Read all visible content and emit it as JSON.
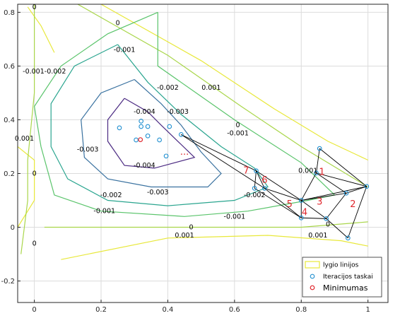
{
  "chart_data": {
    "type": "contour",
    "title": "",
    "xlabel": "",
    "ylabel": "",
    "xlim": [
      -0.05,
      1.06
    ],
    "ylim": [
      -0.28,
      0.83
    ],
    "xticks": [
      "0",
      "0.2",
      "0.4",
      "0.6",
      "0.8",
      "1"
    ],
    "yticks": [
      "-0.2",
      "0",
      "0.2",
      "0.4",
      "0.6",
      "0.8"
    ],
    "grid": true,
    "legend_position": "bottom-right",
    "legend": [
      "lygio linijos",
      "Iteracijos taskai",
      "Minimumas"
    ],
    "colors": {
      "level_yellow": "#e8e83a",
      "level_ylgreen": "#a9d64a",
      "level_green": "#5ac46b",
      "level_teal": "#2aa58f",
      "level_blue": "#3a72a0",
      "level_purple": "#4b2a82",
      "iteration_marker": "#1f8fd0",
      "minimum_marker": "#e0282e",
      "simplex_line": "#000000",
      "sequence_label": "#e0282e"
    },
    "contour_levels": [
      {
        "value": "0.001",
        "color": "level_yellow",
        "points": [
          [
            -0.02,
            0.82
          ],
          [
            0.02,
            0.75
          ],
          [
            0.06,
            0.65
          ]
        ]
      },
      {
        "value": "0.001",
        "color": "level_yellow",
        "points": [
          [
            0.2,
            0.83
          ],
          [
            0.5,
            0.62
          ],
          [
            0.72,
            0.44
          ],
          [
            0.88,
            0.32
          ],
          [
            1.0,
            0.25
          ]
        ]
      },
      {
        "value": "0.001",
        "color": "level_yellow",
        "points": [
          [
            0.08,
            -0.12
          ],
          [
            0.4,
            -0.04
          ],
          [
            0.7,
            -0.03
          ],
          [
            0.92,
            -0.05
          ],
          [
            1.0,
            -0.07
          ]
        ]
      },
      {
        "value": "0.001",
        "color": "level_yellow",
        "points": [
          [
            -0.05,
            0.3
          ],
          [
            0.0,
            0.25
          ],
          [
            0.0,
            0.1
          ],
          [
            -0.05,
            0.0
          ]
        ]
      },
      {
        "value": "0",
        "color": "level_ylgreen",
        "points": [
          [
            0.0,
            0.83
          ],
          [
            0.0,
            0.5
          ],
          [
            -0.02,
            0.25
          ],
          [
            -0.02,
            0.1
          ],
          [
            -0.04,
            -0.1
          ]
        ]
      },
      {
        "value": "0",
        "color": "level_ylgreen",
        "points": [
          [
            0.13,
            0.83
          ],
          [
            0.4,
            0.64
          ],
          [
            0.62,
            0.45
          ],
          [
            0.8,
            0.3
          ],
          [
            1.0,
            0.15
          ]
        ]
      },
      {
        "value": "0",
        "color": "level_ylgreen",
        "points": [
          [
            0.03,
            0.0
          ],
          [
            0.1,
            0.0
          ],
          [
            0.5,
            0.0
          ],
          [
            0.8,
            0.0
          ],
          [
            1.0,
            0.02
          ]
        ]
      },
      {
        "value": "-0.001",
        "color": "level_green",
        "points": [
          [
            0.37,
            0.8
          ],
          [
            0.22,
            0.72
          ],
          [
            0.08,
            0.6
          ],
          [
            0.0,
            0.45
          ],
          [
            0.02,
            0.3
          ],
          [
            0.06,
            0.12
          ],
          [
            0.2,
            0.06
          ],
          [
            0.45,
            0.04
          ],
          [
            0.64,
            0.06
          ],
          [
            0.82,
            0.1
          ],
          [
            0.9,
            0.12
          ],
          [
            0.8,
            0.24
          ],
          [
            0.6,
            0.4
          ],
          [
            0.37,
            0.6
          ],
          [
            0.37,
            0.8
          ]
        ]
      },
      {
        "value": "-0.002",
        "color": "level_teal",
        "points": [
          [
            0.25,
            0.68
          ],
          [
            0.12,
            0.6
          ],
          [
            0.05,
            0.46
          ],
          [
            0.05,
            0.3
          ],
          [
            0.1,
            0.18
          ],
          [
            0.22,
            0.1
          ],
          [
            0.4,
            0.08
          ],
          [
            0.6,
            0.1
          ],
          [
            0.7,
            0.15
          ],
          [
            0.66,
            0.22
          ],
          [
            0.56,
            0.3
          ],
          [
            0.44,
            0.42
          ],
          [
            0.34,
            0.54
          ],
          [
            0.25,
            0.68
          ]
        ]
      },
      {
        "value": "-0.003",
        "color": "level_blue",
        "points": [
          [
            0.3,
            0.55
          ],
          [
            0.2,
            0.5
          ],
          [
            0.14,
            0.4
          ],
          [
            0.15,
            0.26
          ],
          [
            0.22,
            0.18
          ],
          [
            0.35,
            0.15
          ],
          [
            0.52,
            0.15
          ],
          [
            0.56,
            0.2
          ],
          [
            0.5,
            0.28
          ],
          [
            0.44,
            0.38
          ],
          [
            0.38,
            0.46
          ],
          [
            0.3,
            0.55
          ]
        ]
      },
      {
        "value": "-0.004",
        "color": "level_purple",
        "points": [
          [
            0.27,
            0.48
          ],
          [
            0.22,
            0.4
          ],
          [
            0.22,
            0.32
          ],
          [
            0.27,
            0.23
          ],
          [
            0.36,
            0.22
          ],
          [
            0.48,
            0.26
          ],
          [
            0.43,
            0.32
          ],
          [
            0.38,
            0.38
          ],
          [
            0.34,
            0.43
          ],
          [
            0.27,
            0.48
          ]
        ]
      }
    ],
    "contour_labels": [
      {
        "text": "0",
        "x": 0.0,
        "y": 0.82
      },
      {
        "text": "0",
        "x": 0.25,
        "y": 0.76
      },
      {
        "text": "-0.001",
        "x": 0.27,
        "y": 0.66
      },
      {
        "text": "-0.001-0.002",
        "x": 0.03,
        "y": 0.58
      },
      {
        "text": "-0.002",
        "x": 0.4,
        "y": 0.52
      },
      {
        "text": "0.001",
        "x": 0.53,
        "y": 0.52
      },
      {
        "text": "-0.004",
        "x": 0.33,
        "y": 0.43
      },
      {
        "text": "-0.003",
        "x": 0.43,
        "y": 0.43
      },
      {
        "text": "0",
        "x": 0.61,
        "y": 0.38
      },
      {
        "text": "-0.001",
        "x": 0.61,
        "y": 0.35
      },
      {
        "text": "0.001",
        "x": -0.03,
        "y": 0.33
      },
      {
        "text": "-0.003",
        "x": 0.16,
        "y": 0.29
      },
      {
        "text": "-0.004",
        "x": 0.33,
        "y": 0.23
      },
      {
        "text": "0",
        "x": 0.0,
        "y": 0.2
      },
      {
        "text": "-0.003",
        "x": 0.37,
        "y": 0.13
      },
      {
        "text": "-0.002",
        "x": 0.23,
        "y": 0.12
      },
      {
        "text": "-0.001",
        "x": 0.21,
        "y": 0.06
      },
      {
        "text": "-0.001",
        "x": 0.6,
        "y": 0.04
      },
      {
        "text": "0",
        "x": 0.47,
        "y": 0.0
      },
      {
        "text": "0.001",
        "x": 0.45,
        "y": -0.03
      },
      {
        "text": "0",
        "x": 0.0,
        "y": -0.06
      },
      {
        "text": "0.001",
        "x": 0.82,
        "y": 0.21
      },
      {
        "text": "-0.002",
        "x": 0.66,
        "y": 0.12
      },
      {
        "text": "0",
        "x": 0.88,
        "y": 0.01
      },
      {
        "text": "0.001",
        "x": 0.85,
        "y": -0.03
      }
    ],
    "iteration_points": [
      [
        0.855,
        0.293
      ],
      [
        0.996,
        0.152
      ],
      [
        0.845,
        0.202
      ],
      [
        0.935,
        0.127
      ],
      [
        0.8,
        0.1
      ],
      [
        0.875,
        0.032
      ],
      [
        0.8,
        0.035
      ],
      [
        0.94,
        -0.04
      ],
      [
        0.665,
        0.21
      ],
      [
        0.69,
        0.145
      ],
      [
        0.66,
        0.145
      ],
      [
        0.44,
        0.345
      ],
      [
        0.405,
        0.375
      ],
      [
        0.375,
        0.325
      ],
      [
        0.395,
        0.265
      ],
      [
        0.34,
        0.34
      ],
      [
        0.32,
        0.395
      ],
      [
        0.32,
        0.375
      ],
      [
        0.34,
        0.375
      ],
      [
        0.305,
        0.325
      ],
      [
        0.255,
        0.37
      ]
    ],
    "minimum_point": [
      0.318,
      0.326
    ],
    "simplex_edges": [
      [
        [
          0.855,
          0.293
        ],
        [
          0.996,
          0.152
        ]
      ],
      [
        [
          0.996,
          0.152
        ],
        [
          0.845,
          0.202
        ]
      ],
      [
        [
          0.845,
          0.202
        ],
        [
          0.855,
          0.293
        ]
      ],
      [
        [
          0.845,
          0.202
        ],
        [
          0.8,
          0.1
        ]
      ],
      [
        [
          0.8,
          0.1
        ],
        [
          0.935,
          0.127
        ]
      ],
      [
        [
          0.935,
          0.127
        ],
        [
          0.845,
          0.202
        ]
      ],
      [
        [
          0.996,
          0.152
        ],
        [
          0.935,
          0.127
        ]
      ],
      [
        [
          0.935,
          0.127
        ],
        [
          0.875,
          0.032
        ]
      ],
      [
        [
          0.875,
          0.032
        ],
        [
          0.8,
          0.1
        ]
      ],
      [
        [
          0.8,
          0.1
        ],
        [
          0.8,
          0.035
        ]
      ],
      [
        [
          0.8,
          0.035
        ],
        [
          0.875,
          0.032
        ]
      ],
      [
        [
          0.875,
          0.032
        ],
        [
          0.94,
          -0.04
        ]
      ],
      [
        [
          0.94,
          -0.04
        ],
        [
          0.996,
          0.152
        ]
      ],
      [
        [
          0.996,
          0.152
        ],
        [
          0.8,
          0.1
        ]
      ],
      [
        [
          0.8,
          0.1
        ],
        [
          0.665,
          0.21
        ]
      ],
      [
        [
          0.665,
          0.21
        ],
        [
          0.69,
          0.145
        ]
      ],
      [
        [
          0.69,
          0.145
        ],
        [
          0.8,
          0.1
        ]
      ],
      [
        [
          0.8,
          0.035
        ],
        [
          0.66,
          0.145
        ]
      ],
      [
        [
          0.66,
          0.145
        ],
        [
          0.665,
          0.21
        ]
      ],
      [
        [
          0.69,
          0.145
        ],
        [
          0.8,
          0.035
        ]
      ],
      [
        [
          0.665,
          0.21
        ],
        [
          0.44,
          0.345
        ]
      ],
      [
        [
          0.44,
          0.345
        ],
        [
          0.69,
          0.145
        ]
      ]
    ],
    "sequence_labels": [
      {
        "text": "1",
        "x": 0.862,
        "y": 0.205
      },
      {
        "text": "2",
        "x": 0.955,
        "y": 0.085
      },
      {
        "text": "3",
        "x": 0.855,
        "y": 0.095
      },
      {
        "text": "4",
        "x": 0.81,
        "y": 0.055
      },
      {
        "text": "5",
        "x": 0.765,
        "y": 0.085
      },
      {
        "text": "6",
        "x": 0.69,
        "y": 0.175
      },
      {
        "text": "7",
        "x": 0.635,
        "y": 0.21
      },
      {
        "text": "...",
        "x": 0.45,
        "y": 0.28
      }
    ]
  }
}
